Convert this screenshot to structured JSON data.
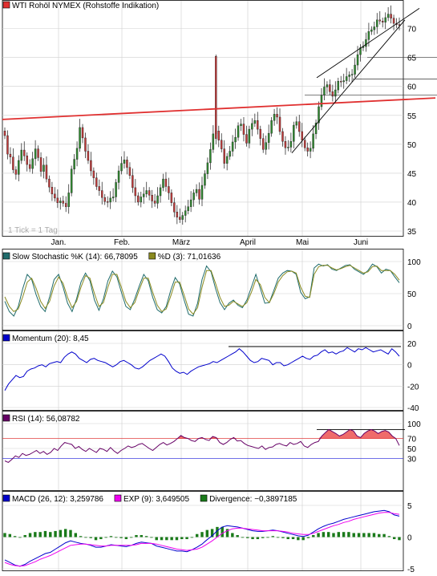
{
  "chart_data": [
    {
      "panel": "price",
      "type": "candlestick",
      "title": "WTI Rohöl NYMEX (Rohstoffe Indikation)",
      "note": "1 Tick = 1 Tag",
      "months": [
        "Jan.",
        "Feb.",
        "März",
        "April",
        "Mai",
        "Juni"
      ],
      "ylim": [
        35,
        73
      ],
      "yticks": [
        35,
        40,
        45,
        50,
        55,
        60,
        65,
        70
      ],
      "close": [
        51.5,
        48.3,
        47.8,
        45.6,
        44.8,
        47.2,
        49.0,
        48.0,
        46.5,
        45.8,
        47.5,
        49.2,
        47.7,
        45.3,
        46.4,
        44.0,
        42.6,
        41.4,
        40.7,
        39.9,
        40.2,
        39.8,
        39.2,
        41.6,
        45.7,
        47.4,
        49.3,
        52.9,
        51.1,
        48.8,
        47.2,
        45.4,
        44.2,
        42.7,
        42.0,
        40.8,
        40.1,
        40.0,
        40.7,
        40.9,
        43.4,
        45.4,
        46.7,
        47.3,
        46.0,
        44.6,
        42.5,
        41.1,
        40.0,
        40.9,
        41.4,
        42.0,
        41.2,
        40.2,
        39.8,
        41.1,
        42.5,
        44.0,
        42.7,
        41.6,
        39.9,
        38.3,
        37.4,
        37.0,
        37.7,
        38.5,
        39.2,
        40.4,
        41.6,
        42.2,
        40.5,
        42.9,
        44.9,
        46.8,
        49.1,
        51.8,
        52.3,
        50.7,
        49.2,
        46.7,
        47.9,
        48.8,
        50.4,
        51.2,
        53.2,
        53.5,
        51.7,
        50.2,
        52.6,
        53.6,
        54.1,
        52.6,
        51.0,
        49.1,
        50.3,
        51.9,
        54.1,
        55.2,
        54.7,
        52.2,
        50.5,
        49.4,
        49.5,
        50.5,
        53.3,
        53.9,
        52.2,
        50.7,
        49.4,
        48.8,
        49.3,
        51.8,
        53.7,
        56.5,
        58.5,
        59.9,
        60.3,
        59.1,
        58.3,
        59.4,
        60.9,
        60.8,
        61.0,
        61.7,
        62.0,
        62.1,
        63.7,
        65.5,
        66.7,
        66.9,
        68.1,
        69.5,
        69.8,
        70.3,
        71.5,
        71.3,
        71.1,
        71.9,
        72.5,
        71.8,
        70.9,
        70.7,
        70.6
      ],
      "overlays": [
        "red horizontal resistance line",
        "rising black channel lines"
      ]
    },
    {
      "panel": "stochastic",
      "type": "line",
      "ylim": [
        0,
        100
      ],
      "yticks": [
        0,
        50,
        100
      ],
      "series": [
        {
          "name": "Slow Stochastic %K (14): 66,78095",
          "values": [
            38,
            22,
            15,
            30,
            58,
            80,
            72,
            48,
            30,
            22,
            45,
            72,
            80,
            60,
            35,
            22,
            42,
            68,
            82,
            70,
            40,
            24,
            42,
            70,
            85,
            76,
            52,
            30,
            25,
            42,
            62,
            80,
            70,
            44,
            25,
            20,
            30,
            55,
            75,
            65,
            40,
            18,
            15,
            35,
            72,
            93,
            84,
            58,
            36,
            25,
            35,
            40,
            32,
            28,
            40,
            60,
            80,
            58,
            35,
            36,
            55,
            74,
            82,
            86,
            85,
            80,
            52,
            42,
            45,
            90,
            96,
            93,
            95,
            88,
            86,
            90,
            94,
            95,
            88,
            84,
            80,
            86,
            96,
            92,
            82,
            88,
            86,
            76,
            67
          ]
        },
        {
          "name": "%D (3): 71,01636",
          "values": [
            45,
            30,
            22,
            26,
            45,
            68,
            74,
            58,
            38,
            27,
            38,
            62,
            76,
            66,
            44,
            28,
            38,
            60,
            78,
            74,
            50,
            30,
            36,
            60,
            80,
            80,
            60,
            38,
            28,
            36,
            56,
            74,
            74,
            52,
            32,
            22,
            26,
            46,
            68,
            68,
            48,
            26,
            18,
            28,
            60,
            86,
            86,
            66,
            44,
            30,
            32,
            38,
            34,
            30,
            36,
            52,
            72,
            64,
            44,
            36,
            50,
            68,
            78,
            84,
            85,
            82,
            60,
            46,
            44,
            80,
            92,
            94,
            94,
            90,
            87,
            89,
            92,
            94,
            90,
            86,
            82,
            84,
            92,
            93,
            86,
            86,
            86,
            80,
            71
          ]
        }
      ]
    },
    {
      "panel": "momentum",
      "type": "line",
      "ylim": [
        -40,
        20
      ],
      "yticks": [
        -40,
        -20,
        0,
        20
      ],
      "series": [
        {
          "name": "Momentum (20): 8,45",
          "values": [
            -24,
            -18,
            -14,
            -10,
            -12,
            -11,
            -6,
            -4,
            -3,
            -1,
            0,
            -2,
            1,
            2,
            3,
            2,
            7,
            10,
            12,
            10,
            6,
            4,
            2,
            5,
            6,
            4,
            3,
            2,
            0,
            -2,
            0,
            3,
            4,
            2,
            0,
            -3,
            -4,
            -2,
            1,
            4,
            6,
            8,
            10,
            8,
            3,
            -3,
            -6,
            -8,
            -7,
            -9,
            -6,
            -4,
            -2,
            -1,
            0,
            1,
            3,
            2,
            4,
            6,
            8,
            10,
            12,
            15,
            12,
            8,
            4,
            2,
            3,
            6,
            5,
            4,
            0,
            2,
            2,
            -1,
            0,
            2,
            4,
            6,
            8,
            6,
            5,
            8,
            9,
            12,
            14,
            11,
            12,
            10,
            12,
            13,
            16,
            14,
            12,
            15,
            14,
            16,
            14,
            12,
            13,
            14,
            12,
            10,
            15,
            12,
            8
          ]
        }
      ]
    },
    {
      "panel": "rsi",
      "type": "line",
      "ylim": [
        0,
        100
      ],
      "yticks": [
        30,
        50,
        70,
        100
      ],
      "series": [
        {
          "name": "RSI (14): 56,08782",
          "values": [
            25,
            22,
            28,
            35,
            32,
            40,
            36,
            38,
            42,
            46,
            40,
            44,
            38,
            42,
            50,
            46,
            55,
            62,
            60,
            58,
            50,
            54,
            48,
            44,
            50,
            46,
            42,
            50,
            48,
            44,
            52,
            45,
            40,
            46,
            50,
            55,
            52,
            54,
            58,
            60,
            55,
            50,
            46,
            52,
            58,
            62,
            57,
            60,
            64,
            70,
            76,
            72,
            70,
            66,
            64,
            70,
            72,
            68,
            66,
            74,
            72,
            62,
            58,
            62,
            68,
            72,
            65,
            66,
            60,
            56,
            54,
            52,
            50,
            55,
            48,
            52,
            53,
            58,
            60,
            57,
            55,
            62,
            58,
            60,
            64,
            55,
            52,
            58,
            62,
            64,
            75,
            82,
            88,
            84,
            80,
            75,
            78,
            83,
            88,
            85,
            75,
            72,
            80,
            85,
            88,
            85,
            80,
            84,
            86,
            83,
            75,
            70,
            56
          ]
        }
      ]
    },
    {
      "panel": "macd",
      "type": "line",
      "ylim": [
        -5,
        5
      ],
      "yticks": [
        -5,
        0,
        5
      ],
      "series": [
        {
          "name": "MACD (26, 12): 3,259786",
          "values": [
            -3.6,
            -4.0,
            -4.4,
            -4.6,
            -4.3,
            -3.8,
            -3.4,
            -3.0,
            -2.6,
            -2.4,
            -1.9,
            -1.4,
            -0.9,
            -0.6,
            -0.8,
            -1.0,
            -1.1,
            -1.3,
            -1.6,
            -1.6,
            -1.4,
            -1.2,
            -1.3,
            -1.4,
            -1.5,
            -1.3,
            -1.0,
            -0.8,
            -0.9,
            -1.0,
            -1.4,
            -1.6,
            -1.8,
            -2.0,
            -2.2,
            -2.2,
            -2.3,
            -2.0,
            -1.6,
            -1.1,
            -0.4,
            0.2,
            1.0,
            1.6,
            1.8,
            1.7,
            1.6,
            1.4,
            1.2,
            1.0,
            0.9,
            0.9,
            1.0,
            1.1,
            1.0,
            0.8,
            0.6,
            0.4,
            0.2,
            0.1,
            0.3,
            0.8,
            1.3,
            1.7,
            2.0,
            2.2,
            2.5,
            2.8,
            3.0,
            3.2,
            3.4,
            3.6,
            3.8,
            4.0,
            4.1,
            4.2,
            4.0,
            3.5,
            3.3
          ]
        },
        {
          "name": "EXP (9): 3,649505",
          "values": [
            -4.0,
            -4.3,
            -4.5,
            -4.6,
            -4.5,
            -4.2,
            -3.9,
            -3.5,
            -3.2,
            -2.9,
            -2.5,
            -2.1,
            -1.7,
            -1.3,
            -1.2,
            -1.1,
            -1.1,
            -1.2,
            -1.3,
            -1.4,
            -1.4,
            -1.3,
            -1.3,
            -1.3,
            -1.3,
            -1.3,
            -1.2,
            -1.0,
            -1.0,
            -1.0,
            -1.1,
            -1.3,
            -1.5,
            -1.7,
            -1.9,
            -2.0,
            -2.1,
            -2.0,
            -1.9,
            -1.6,
            -1.1,
            -0.6,
            0.0,
            0.6,
            1.0,
            1.3,
            1.4,
            1.4,
            1.3,
            1.2,
            1.1,
            1.0,
            1.0,
            1.0,
            1.0,
            0.9,
            0.8,
            0.6,
            0.5,
            0.4,
            0.4,
            0.6,
            0.9,
            1.2,
            1.5,
            1.8,
            2.0,
            2.3,
            2.5,
            2.8,
            3.0,
            3.2,
            3.4,
            3.6,
            3.8,
            3.9,
            3.9,
            3.7,
            3.6
          ]
        },
        {
          "name": "Divergence: −0,3897185",
          "values": [
            0.4,
            0.3,
            0.1,
            0.0,
            0.2,
            0.4,
            0.5,
            0.5,
            0.6,
            0.5,
            0.6,
            0.7,
            0.8,
            0.7,
            0.4,
            0.1,
            0.0,
            -0.1,
            -0.3,
            -0.2,
            0.0,
            0.1,
            0.0,
            -0.1,
            -0.2,
            0.0,
            0.2,
            0.2,
            0.1,
            0.0,
            -0.3,
            -0.3,
            -0.3,
            -0.3,
            -0.3,
            -0.2,
            -0.2,
            0.0,
            0.3,
            0.5,
            0.7,
            0.8,
            1.0,
            1.0,
            0.8,
            0.4,
            0.2,
            0.0,
            -0.1,
            -0.2,
            -0.2,
            -0.1,
            0.0,
            0.1,
            0.0,
            -0.1,
            -0.2,
            -0.2,
            -0.3,
            -0.3,
            -0.1,
            0.2,
            0.4,
            0.5,
            0.5,
            0.4,
            0.5,
            0.5,
            0.5,
            0.4,
            0.4,
            0.4,
            0.4,
            0.4,
            0.3,
            0.3,
            0.1,
            -0.2,
            -0.3
          ]
        }
      ]
    }
  ],
  "colors": {
    "up": "#2f8a2f",
    "down": "#c23b3b",
    "stoch_k": "#1f6b6b",
    "stoch_d": "#8a8a1f",
    "momentum": "#0000cc",
    "rsi": "#660066",
    "rsi_fill": "#ef6b6b",
    "macd": "#0000cc",
    "exp": "#ee00ee",
    "divergence": "#1a7a1a",
    "resistance": "#e03030",
    "grid": "#cfcfcf"
  }
}
